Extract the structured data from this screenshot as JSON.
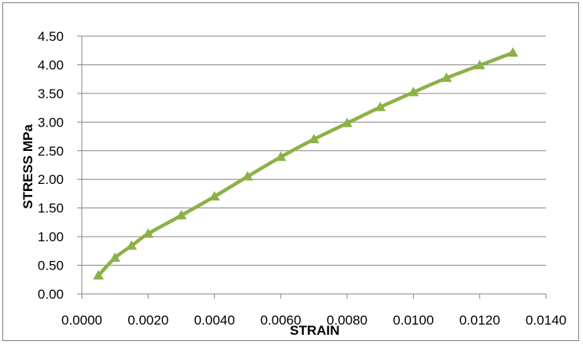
{
  "chart_data": {
    "type": "line",
    "title": "",
    "xlabel": "STRAIN",
    "ylabel": "STRESS MPa",
    "xlim": [
      0,
      0.014
    ],
    "ylim": [
      0,
      4.5
    ],
    "x_ticks": [
      "0.0000",
      "0.0020",
      "0.0040",
      "0.0060",
      "0.0080",
      "0.0100",
      "0.0120",
      "0.0140"
    ],
    "y_ticks": [
      "0.00",
      "0.50",
      "1.00",
      "1.50",
      "2.00",
      "2.50",
      "3.00",
      "3.50",
      "4.00",
      "4.50"
    ],
    "grid": "horizontal",
    "legend": "none",
    "series": [
      {
        "color": "#8cb147",
        "marker": "triangle",
        "x": [
          0.0005,
          0.001,
          0.0015,
          0.002,
          0.003,
          0.004,
          0.005,
          0.006,
          0.007,
          0.008,
          0.009,
          0.01,
          0.011,
          0.012,
          0.013
        ],
        "y": [
          0.32,
          0.63,
          0.84,
          1.05,
          1.37,
          1.7,
          2.05,
          2.39,
          2.7,
          2.98,
          3.26,
          3.52,
          3.77,
          3.99,
          4.21
        ]
      }
    ]
  }
}
